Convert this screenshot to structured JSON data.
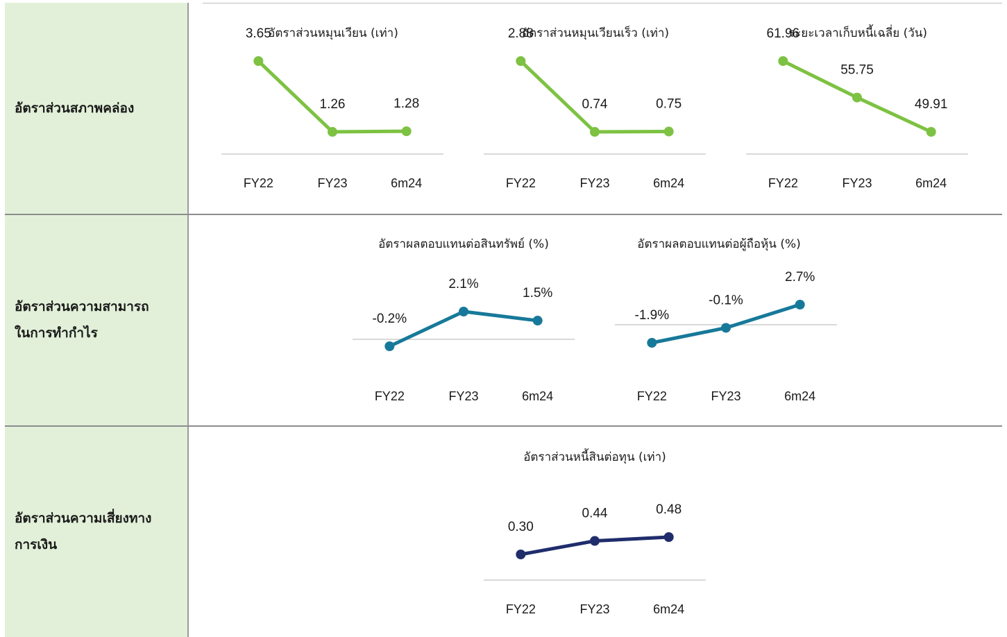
{
  "rows": [
    {
      "label": "อัตราส่วนสภาพคล่อง"
    },
    {
      "label": "อัตราส่วนความสามารถ\nในการทำกำไร"
    },
    {
      "label": "อัตราส่วนความเสี่ยงทาง\nการเงิน"
    }
  ],
  "colors": {
    "label_bg": "#e2f0d9",
    "liquidity": "#7dc242",
    "profitability": "#17799a",
    "risk": "#1f2d6b",
    "baseline": "#d9d9d9"
  },
  "chart_data": [
    {
      "type": "line",
      "title": "อัตราส่วนหมุนเวียน (เท่า)",
      "categories": [
        "FY22",
        "FY23",
        "6m24"
      ],
      "values": [
        3.65,
        1.26,
        1.28
      ],
      "labels": [
        "3.65",
        "1.26",
        "1.28"
      ],
      "ylim": [
        0,
        4.5
      ],
      "color": "#7dc242"
    },
    {
      "type": "line",
      "title": "อัตราส่วนหมุนเวียนเร็ว (เท่า)",
      "categories": [
        "FY22",
        "FY23",
        "6m24"
      ],
      "values": [
        2.88,
        0.74,
        0.75
      ],
      "labels": [
        "2.88",
        "0.74",
        "0.75"
      ],
      "ylim": [
        0,
        4.5
      ],
      "color": "#7dc242"
    },
    {
      "type": "line",
      "title": "ระยะเวลาเก็บหนี้เฉลี่ย (วัน)",
      "categories": [
        "FY22",
        "FY23",
        "6m24"
      ],
      "values": [
        61.96,
        55.75,
        49.91
      ],
      "labels": [
        "61.96",
        "55.75",
        "49.91"
      ],
      "ylim": [
        0,
        80
      ],
      "color": "#7dc242"
    },
    {
      "type": "line",
      "title": "อัตราผลตอบแทนต่อสินทรัพย์ (%)",
      "categories": [
        "FY22",
        "FY23",
        "6m24"
      ],
      "values": [
        -0.2,
        2.1,
        1.5
      ],
      "labels": [
        "-0.2%",
        "2.1%",
        "1.5%"
      ],
      "ylim": [
        -0.2,
        2.5
      ],
      "color": "#17799a"
    },
    {
      "type": "line",
      "title": "อัตราผลตอบแทนต่อผู้ถือหุ้น (%)",
      "categories": [
        "FY22",
        "FY23",
        "6m24"
      ],
      "values": [
        -1.9,
        -0.1,
        2.7
      ],
      "labels": [
        "-1.9%",
        "-0.1%",
        "2.7%"
      ],
      "ylim": [
        -2.3,
        3.5
      ],
      "color": "#17799a"
    },
    {
      "type": "line",
      "title": "อัตราส่วนหนี้สินต่อทุน (เท่า)",
      "categories": [
        "FY22",
        "FY23",
        "6m24"
      ],
      "values": [
        0.3,
        0.44,
        0.48
      ],
      "labels": [
        "0.30",
        "0.44",
        "0.48"
      ],
      "ylim": [
        0,
        1.2
      ],
      "color": "#1f2d6b"
    }
  ]
}
